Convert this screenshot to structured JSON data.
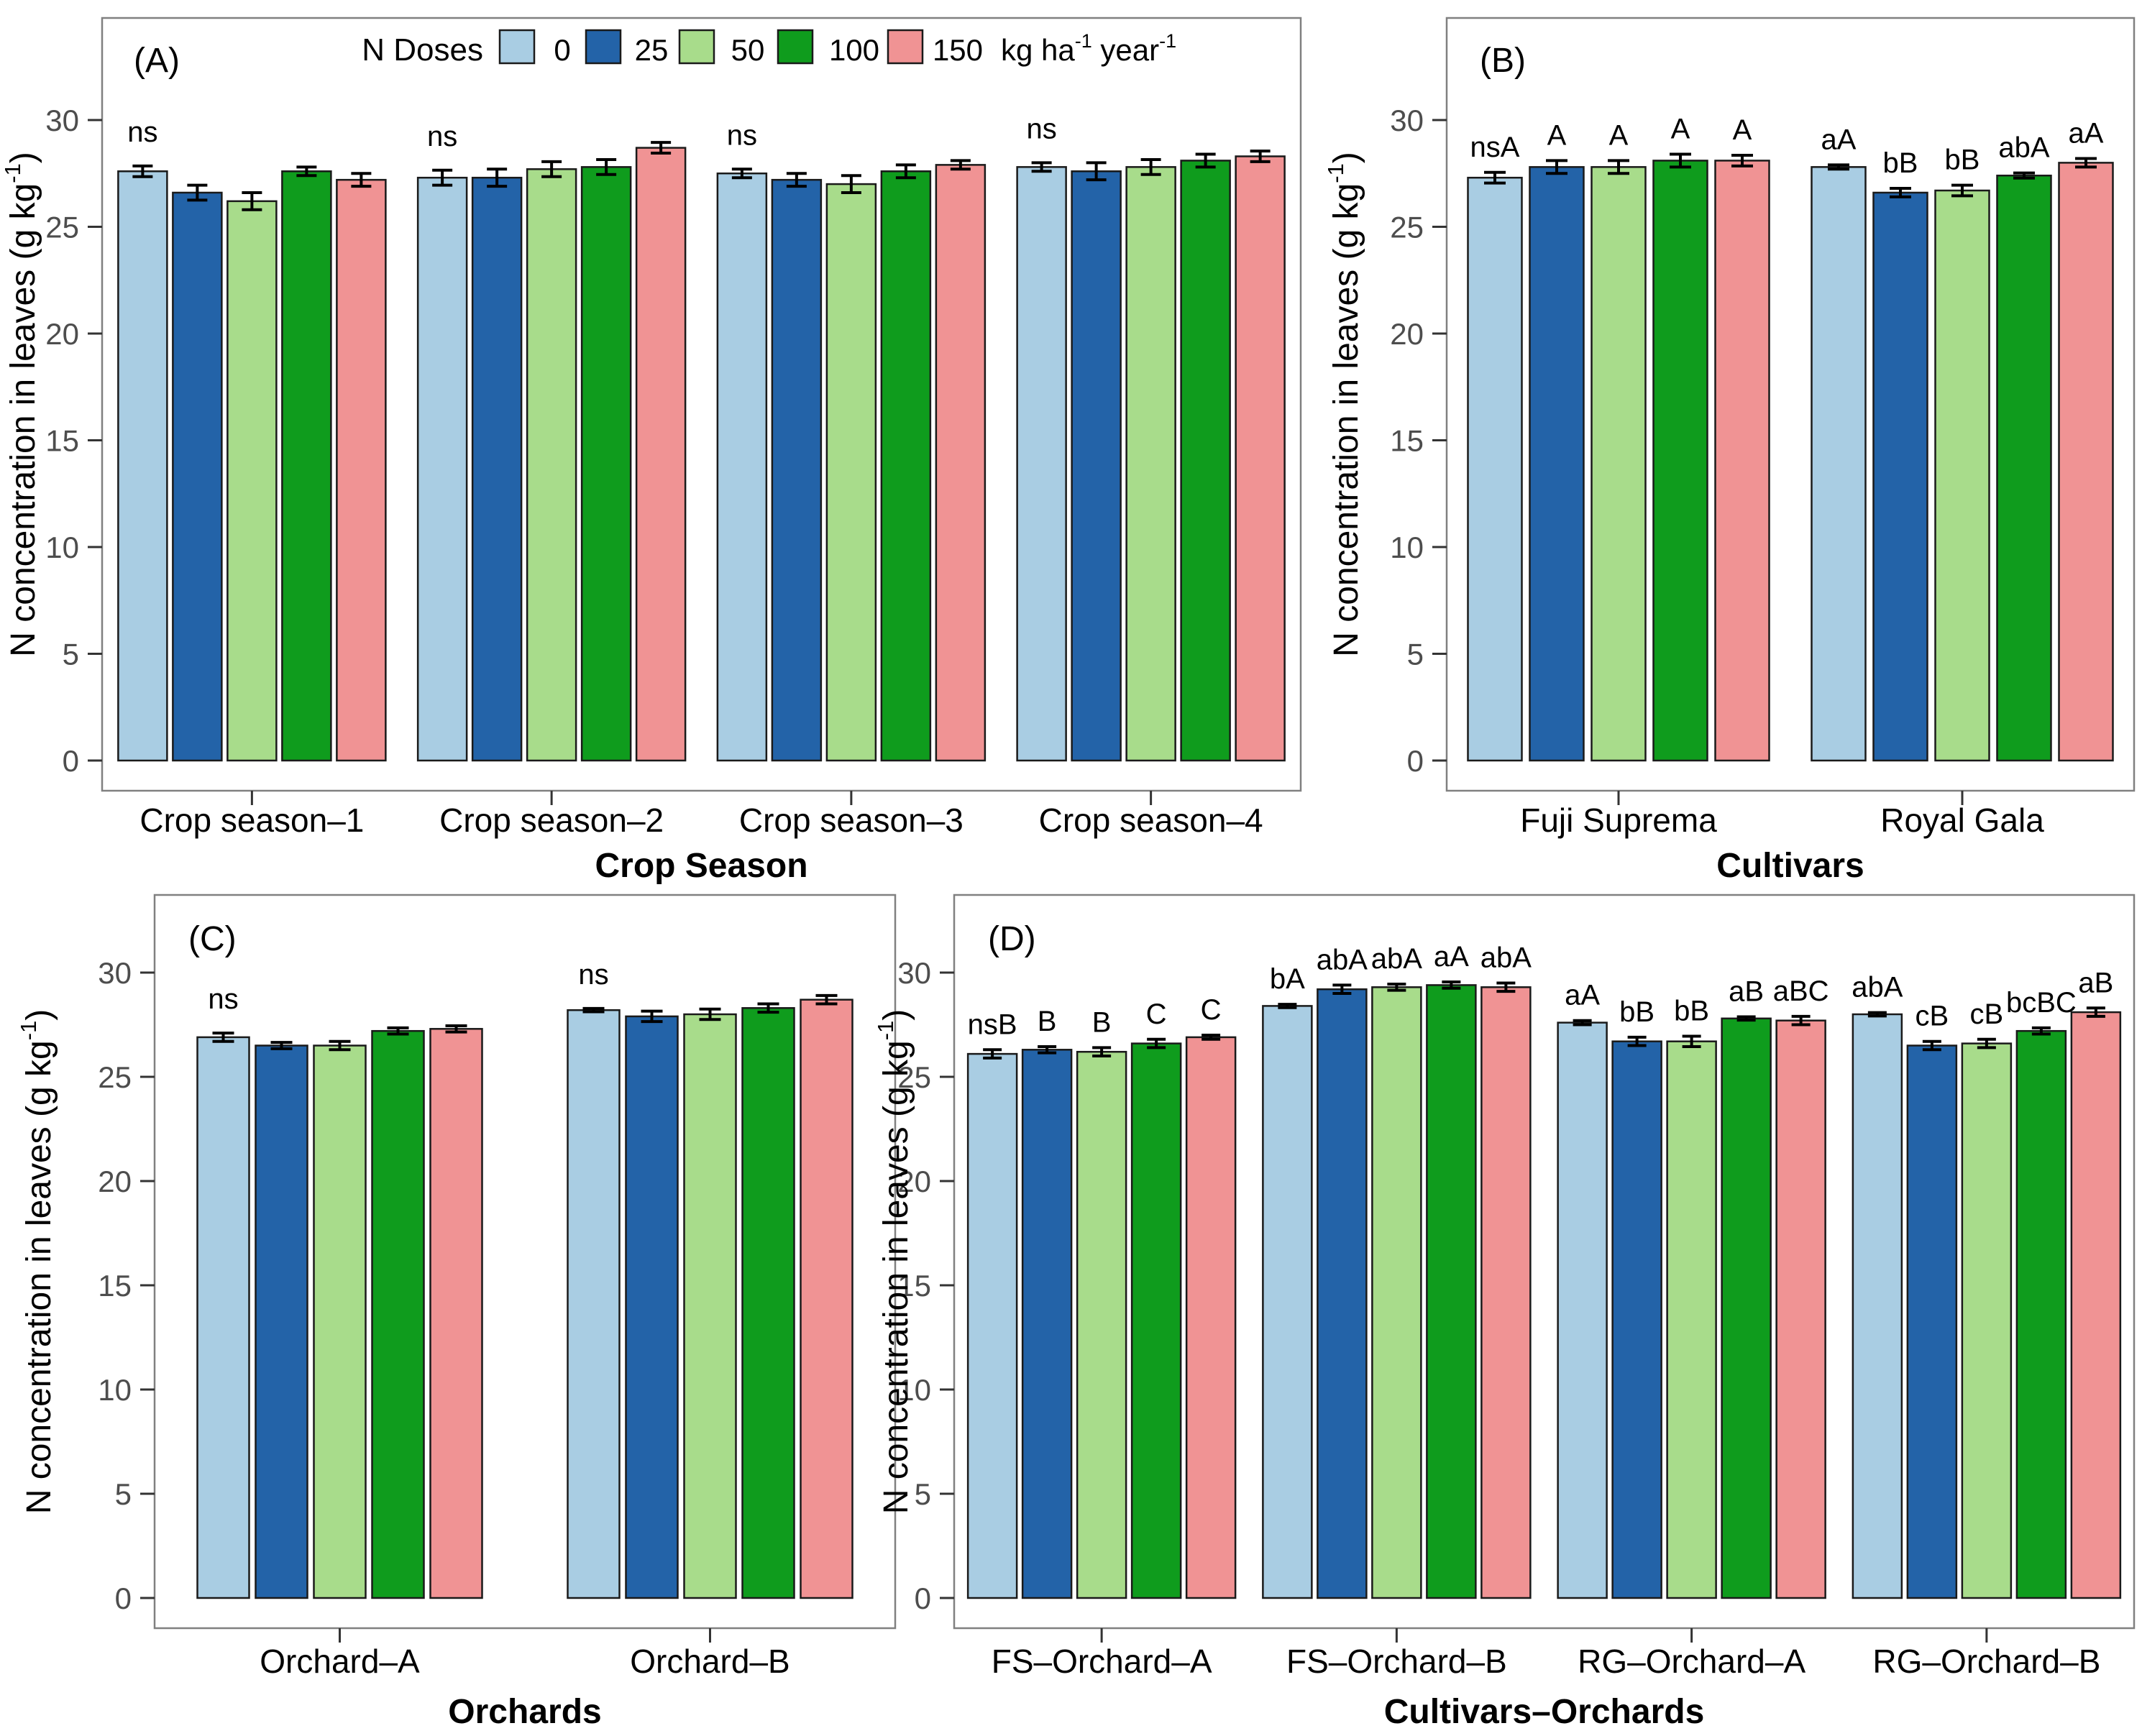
{
  "figure": {
    "background": "#ffffff",
    "dose_colors": [
      "#a9cde3",
      "#2363a8",
      "#a8dc8b",
      "#0f9c1d",
      "#f09394"
    ],
    "bar_border_color": "#1a1a1a",
    "error_bar_color": "#000000",
    "panel_border_color": "#808080",
    "tick_text_color": "#4d4d4d",
    "label_text_color": "#000000",
    "legend": {
      "title": "N Doses",
      "labels": [
        "0",
        "25",
        "50",
        "100",
        "150"
      ],
      "unit_suffix": "kg ha⁻¹ year⁻¹"
    },
    "ylabel": "N concentration in leaves (g kg⁻¹)",
    "yticks": [
      0,
      5,
      10,
      15,
      20,
      25,
      30
    ]
  },
  "chart_data": [
    {
      "id": "A",
      "type": "bar",
      "panel_label": "(A)",
      "xlabel": "Crop Season",
      "ylabel": "N concentration in leaves (g kg⁻¹)",
      "ylim": [
        0,
        34.8
      ],
      "yticks": [
        0,
        5,
        10,
        15,
        20,
        25,
        30
      ],
      "legend_position": "top-inside",
      "series_labels": [
        "0",
        "25",
        "50",
        "100",
        "150"
      ],
      "groups": [
        {
          "category": "Crop season–1",
          "annotation": "ns",
          "values": [
            27.6,
            26.6,
            26.2,
            27.6,
            27.2
          ],
          "errors": [
            0.25,
            0.35,
            0.4,
            0.2,
            0.3
          ]
        },
        {
          "category": "Crop season–2",
          "annotation": "ns",
          "values": [
            27.3,
            27.3,
            27.7,
            27.8,
            28.7
          ],
          "errors": [
            0.35,
            0.4,
            0.35,
            0.35,
            0.25
          ]
        },
        {
          "category": "Crop season–3",
          "annotation": "ns",
          "values": [
            27.5,
            27.2,
            27.0,
            27.6,
            27.9
          ],
          "errors": [
            0.2,
            0.3,
            0.4,
            0.3,
            0.2
          ]
        },
        {
          "category": "Crop season–4",
          "annotation": "ns",
          "values": [
            27.8,
            27.6,
            27.8,
            28.1,
            28.3
          ],
          "errors": [
            0.2,
            0.4,
            0.35,
            0.3,
            0.25
          ]
        }
      ]
    },
    {
      "id": "B",
      "type": "bar",
      "panel_label": "(B)",
      "xlabel": "Cultivars",
      "ylabel": "N concentration in leaves (g kg⁻¹)",
      "ylim": [
        0,
        34.8
      ],
      "yticks": [
        0,
        5,
        10,
        15,
        20,
        25,
        30
      ],
      "series_labels": [
        "0",
        "25",
        "50",
        "100",
        "150"
      ],
      "groups": [
        {
          "category": "Fuji Suprema",
          "bar_annotations": [
            "nsA",
            "A",
            "A",
            "A",
            "A"
          ],
          "values": [
            27.3,
            27.8,
            27.8,
            28.1,
            28.1
          ],
          "errors": [
            0.25,
            0.3,
            0.3,
            0.3,
            0.25
          ]
        },
        {
          "category": "Royal Gala",
          "bar_annotations": [
            "aA",
            "bB",
            "bB",
            "abA",
            "aA"
          ],
          "values": [
            27.8,
            26.6,
            26.7,
            27.4,
            28.0
          ],
          "errors": [
            0.1,
            0.2,
            0.25,
            0.12,
            0.2
          ]
        }
      ]
    },
    {
      "id": "C",
      "type": "bar",
      "panel_label": "(C)",
      "xlabel": "Orchards",
      "ylabel": "N concentration in leaves (g kg⁻¹)",
      "ylim": [
        0,
        33.7
      ],
      "yticks": [
        0,
        5,
        10,
        15,
        20,
        25,
        30
      ],
      "series_labels": [
        "0",
        "25",
        "50",
        "100",
        "150"
      ],
      "groups": [
        {
          "category": "Orchard–A",
          "annotation": "ns",
          "values": [
            26.9,
            26.5,
            26.5,
            27.2,
            27.3
          ],
          "errors": [
            0.2,
            0.15,
            0.2,
            0.15,
            0.15
          ]
        },
        {
          "category": "Orchard–B",
          "annotation": "ns",
          "values": [
            28.2,
            27.9,
            28.0,
            28.3,
            28.7
          ],
          "errors": [
            0.08,
            0.25,
            0.25,
            0.2,
            0.2
          ]
        }
      ]
    },
    {
      "id": "D",
      "type": "bar",
      "panel_label": "(D)",
      "xlabel": "Cultivars–Orchards",
      "ylabel": "N concentration in leaves (g kg⁻¹)",
      "ylim": [
        0,
        33.7
      ],
      "yticks": [
        0,
        5,
        10,
        15,
        20,
        25,
        30
      ],
      "series_labels": [
        "0",
        "25",
        "50",
        "100",
        "150"
      ],
      "groups": [
        {
          "category": "FS–Orchard–A",
          "bar_annotations": [
            "nsB",
            "B",
            "B",
            "C",
            "C"
          ],
          "values": [
            26.1,
            26.3,
            26.2,
            26.6,
            26.9
          ],
          "errors": [
            0.2,
            0.15,
            0.2,
            0.2,
            0.1
          ]
        },
        {
          "category": "FS–Orchard–B",
          "bar_annotations": [
            "bA",
            "abA",
            "abA",
            "aA",
            "abA"
          ],
          "values": [
            28.4,
            29.2,
            29.3,
            29.4,
            29.3
          ],
          "errors": [
            0.08,
            0.2,
            0.15,
            0.15,
            0.2
          ]
        },
        {
          "category": "RG–Orchard–A",
          "bar_annotations": [
            "aA",
            "bB",
            "bB",
            "aB",
            "aBC"
          ],
          "values": [
            27.6,
            26.7,
            26.7,
            27.8,
            27.7
          ],
          "errors": [
            0.1,
            0.2,
            0.25,
            0.08,
            0.2
          ]
        },
        {
          "category": "RG–Orchard–B",
          "bar_annotations": [
            "abA",
            "cB",
            "cB",
            "bcBC",
            "aB"
          ],
          "values": [
            28.0,
            26.5,
            26.6,
            27.2,
            28.1
          ],
          "errors": [
            0.08,
            0.2,
            0.2,
            0.15,
            0.2
          ]
        }
      ]
    }
  ]
}
